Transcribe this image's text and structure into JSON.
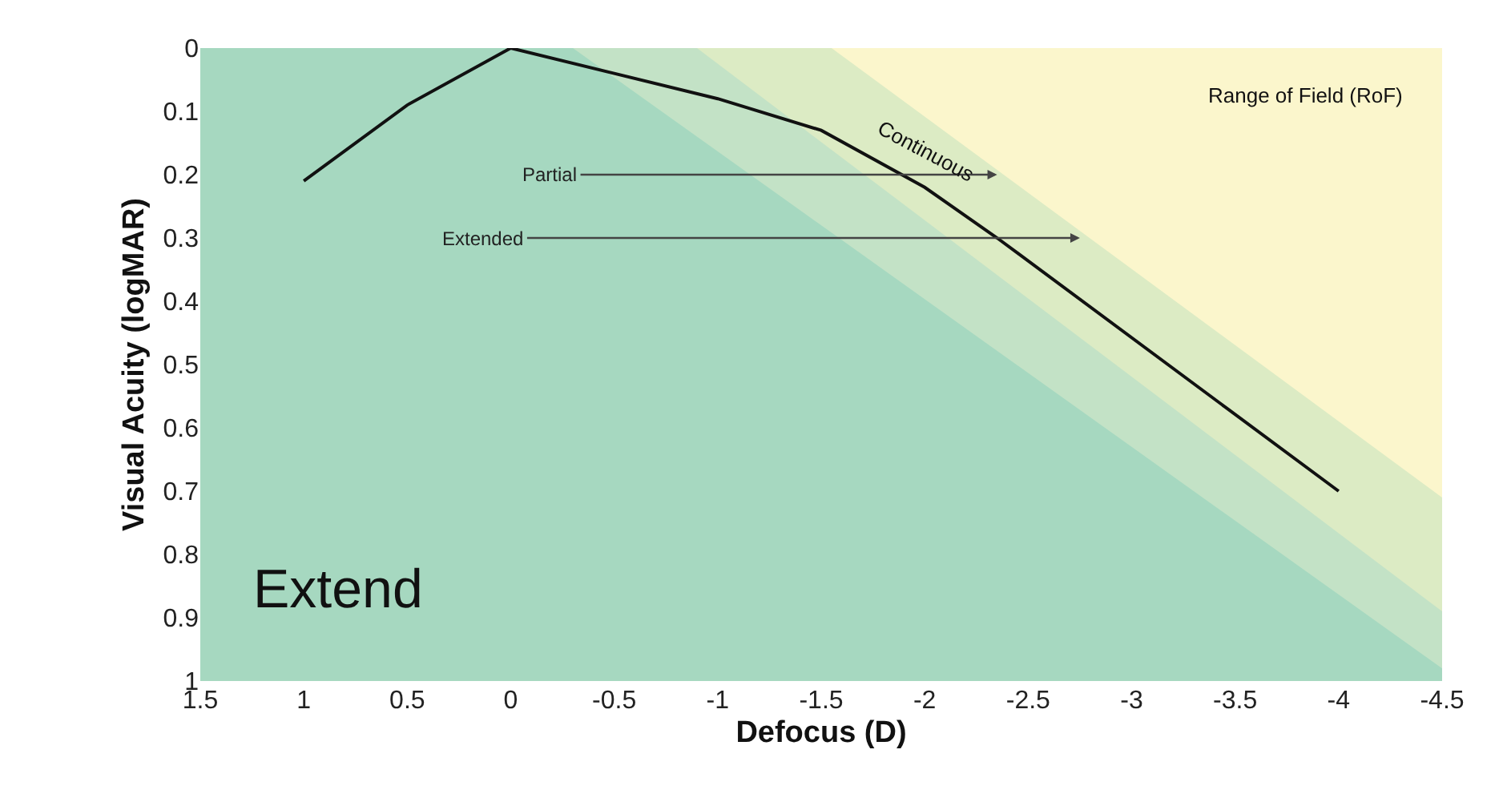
{
  "chart_data": {
    "type": "line",
    "xlabel": "Defocus (D)",
    "ylabel": "Visual Acuity (logMAR)",
    "xlim": [
      1.5,
      -4.5
    ],
    "xticks": [
      1.5,
      1,
      0.5,
      0,
      -0.5,
      -1,
      -1.5,
      -2,
      -2.5,
      -3,
      -3.5,
      -4,
      -4.5
    ],
    "ylim": [
      1,
      0
    ],
    "yticks": [
      0,
      0.1,
      0.2,
      0.3,
      0.4,
      0.5,
      0.6,
      0.7,
      0.8,
      0.9,
      1
    ],
    "marker": "none",
    "line_style": "solid",
    "series": [
      {
        "type": "area",
        "color": "#a6d8c0",
        "x": [
          1.5,
          -4.5
        ],
        "values": [
          1,
          1
        ]
      },
      {
        "type": "area",
        "color": "#c3e2c6",
        "x": [
          -0.3,
          -4.5
        ],
        "values": [
          0,
          0.98
        ]
      },
      {
        "type": "area",
        "color": "#dcebc4",
        "x": [
          -0.9,
          -4.5
        ],
        "values": [
          0,
          0.89
        ]
      },
      {
        "type": "area",
        "color": "#fbf6cc",
        "x": [
          -1.55,
          -4.5
        ],
        "values": [
          0,
          0.71
        ]
      },
      {
        "color": "#111111",
        "x": [
          1,
          0.5,
          0,
          -1,
          -1.5,
          -2,
          -2.35,
          -4
        ],
        "values": [
          0.21,
          0.09,
          0,
          0.08,
          0.13,
          0.22,
          0.3,
          0.7
        ]
      }
    ],
    "annotations": [
      {
        "text": "Partial",
        "x": -2.35,
        "y": 0.2
      },
      {
        "text": "Extended",
        "x": -2.75,
        "y": 0.3
      },
      "Continuous",
      "Range of Field (RoF)",
      "Extend"
    ]
  }
}
